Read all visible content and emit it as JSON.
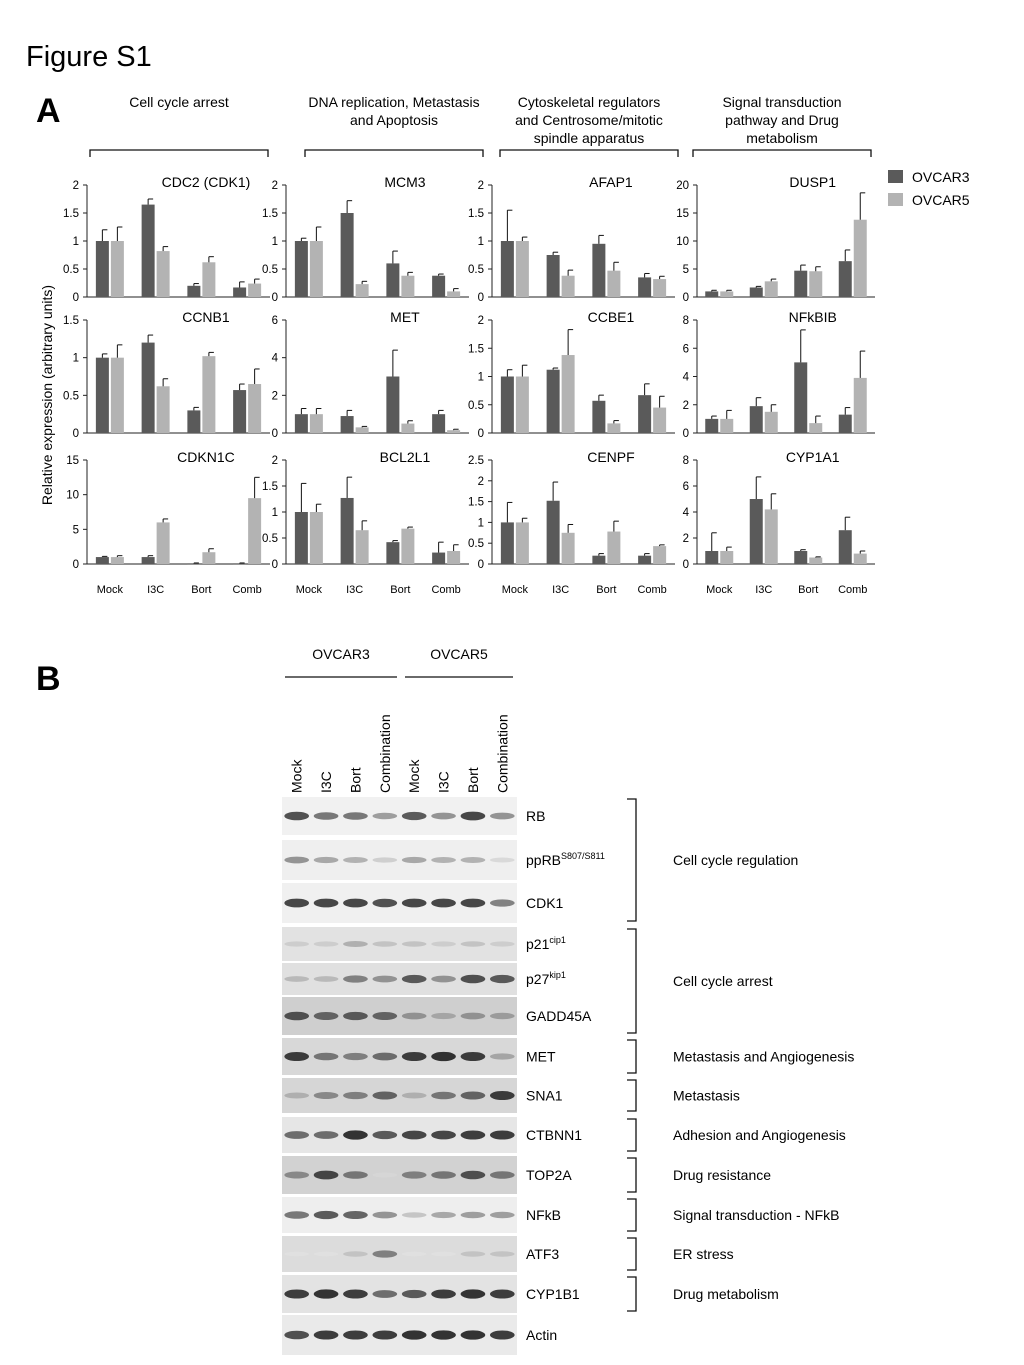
{
  "figure_title": "Figure S1",
  "panel_a_label": "A",
  "panel_b_label": "B",
  "y_axis_label": "Relative expression (arbitrary units)",
  "legend": [
    {
      "name": "OVCAR3",
      "color": "#5a5a5a"
    },
    {
      "name": "OVCAR5",
      "color": "#b3b3b3"
    }
  ],
  "groups": [
    [
      "Cell cycle arrest"
    ],
    [
      "DNA replication, Metastasis",
      "and Apoptosis"
    ],
    [
      "Cytoskeletal regulators",
      "and Centrosome/mitotic",
      "spindle apparatus"
    ],
    [
      "Signal transduction",
      "pathway and Drug",
      "metabolism"
    ]
  ],
  "categories": [
    "Mock",
    "I3C",
    "Bort",
    "Comb"
  ],
  "chart_data": [
    {
      "type": "bar",
      "title": "CDC2 (CDK1)",
      "ymax": 2,
      "ticks": [
        0,
        0.5,
        1,
        1.5,
        2
      ],
      "tick_labels": [
        "0",
        "0.5",
        "1",
        "1.5",
        "2"
      ],
      "series": [
        {
          "name": "OVCAR3",
          "values": [
            1.0,
            1.65,
            0.2,
            0.17
          ],
          "errors": [
            0.2,
            0.1,
            0.04,
            0.1
          ]
        },
        {
          "name": "OVCAR5",
          "values": [
            1.0,
            0.82,
            0.62,
            0.24
          ],
          "errors": [
            0.25,
            0.08,
            0.1,
            0.08
          ]
        }
      ]
    },
    {
      "type": "bar",
      "title": "MCM3",
      "ymax": 2,
      "ticks": [
        0,
        0.5,
        1,
        1.5,
        2
      ],
      "tick_labels": [
        "0",
        "0.5",
        "1",
        "1.5",
        "2"
      ],
      "series": [
        {
          "name": "OVCAR3",
          "values": [
            1.0,
            1.5,
            0.6,
            0.38
          ],
          "errors": [
            0.05,
            0.22,
            0.22,
            0.03
          ]
        },
        {
          "name": "OVCAR5",
          "values": [
            1.0,
            0.23,
            0.38,
            0.1
          ],
          "errors": [
            0.25,
            0.05,
            0.06,
            0.05
          ]
        }
      ]
    },
    {
      "type": "bar",
      "title": "AFAP1",
      "ymax": 2,
      "ticks": [
        0,
        0.5,
        1,
        1.5,
        2
      ],
      "tick_labels": [
        "0",
        "0.5",
        "1",
        "1.5",
        "2"
      ],
      "series": [
        {
          "name": "OVCAR3",
          "values": [
            1.0,
            0.75,
            0.95,
            0.35
          ],
          "errors": [
            0.55,
            0.05,
            0.15,
            0.07
          ]
        },
        {
          "name": "OVCAR5",
          "values": [
            1.0,
            0.38,
            0.47,
            0.32
          ],
          "errors": [
            0.07,
            0.1,
            0.15,
            0.05
          ]
        }
      ]
    },
    {
      "type": "bar",
      "title": "DUSP1",
      "ymax": 20,
      "ticks": [
        0,
        5,
        10,
        15,
        20
      ],
      "tick_labels": [
        "0",
        "5",
        "10",
        "15",
        "20"
      ],
      "series": [
        {
          "name": "OVCAR3",
          "values": [
            1.0,
            1.7,
            4.7,
            6.4
          ],
          "errors": [
            0.2,
            0.2,
            1.0,
            2.0
          ]
        },
        {
          "name": "OVCAR5",
          "values": [
            1.0,
            2.8,
            4.6,
            13.8
          ],
          "errors": [
            0.2,
            0.4,
            0.8,
            4.8
          ]
        }
      ]
    },
    {
      "type": "bar",
      "title": "CCNB1",
      "ymax": 1.5,
      "ticks": [
        0,
        0.5,
        1,
        1.5
      ],
      "tick_labels": [
        "0",
        "0.5",
        "1",
        "1.5"
      ],
      "series": [
        {
          "name": "OVCAR3",
          "values": [
            1.0,
            1.2,
            0.3,
            0.57
          ],
          "errors": [
            0.05,
            0.1,
            0.04,
            0.08
          ]
        },
        {
          "name": "OVCAR5",
          "values": [
            1.0,
            0.62,
            1.02,
            0.65
          ],
          "errors": [
            0.17,
            0.1,
            0.05,
            0.2
          ]
        }
      ]
    },
    {
      "type": "bar",
      "title": "MET",
      "ymax": 6,
      "ticks": [
        0,
        2,
        4,
        6
      ],
      "tick_labels": [
        "0",
        "2",
        "4",
        "6"
      ],
      "series": [
        {
          "name": "OVCAR3",
          "values": [
            1.0,
            0.9,
            3.0,
            1.0
          ],
          "errors": [
            0.3,
            0.3,
            1.4,
            0.2
          ]
        },
        {
          "name": "OVCAR5",
          "values": [
            1.0,
            0.3,
            0.5,
            0.15
          ],
          "errors": [
            0.3,
            0.05,
            0.15,
            0.05
          ]
        }
      ]
    },
    {
      "type": "bar",
      "title": "CCBE1",
      "ymax": 2,
      "ticks": [
        0,
        0.5,
        1,
        1.5,
        2
      ],
      "tick_labels": [
        "0",
        "0.5",
        "1",
        "1.5",
        "2"
      ],
      "series": [
        {
          "name": "OVCAR3",
          "values": [
            1.0,
            1.12,
            0.57,
            0.67
          ],
          "errors": [
            0.12,
            0.03,
            0.1,
            0.2
          ]
        },
        {
          "name": "OVCAR5",
          "values": [
            1.0,
            1.38,
            0.17,
            0.45
          ],
          "errors": [
            0.2,
            0.45,
            0.05,
            0.2
          ]
        }
      ]
    },
    {
      "type": "bar",
      "title": "NFkBIB",
      "ymax": 8,
      "ticks": [
        0,
        2,
        4,
        6,
        8
      ],
      "tick_labels": [
        "0",
        "2",
        "4",
        "6",
        "8"
      ],
      "series": [
        {
          "name": "OVCAR3",
          "values": [
            1.0,
            1.9,
            5.0,
            1.3
          ],
          "errors": [
            0.2,
            0.6,
            2.3,
            0.5
          ]
        },
        {
          "name": "OVCAR5",
          "values": [
            1.0,
            1.5,
            0.7,
            3.9
          ],
          "errors": [
            0.6,
            0.5,
            0.5,
            1.9
          ]
        }
      ]
    },
    {
      "type": "bar",
      "title": "CDKN1C",
      "ymax": 15,
      "ticks": [
        0,
        5,
        10,
        15
      ],
      "tick_labels": [
        "0",
        "5",
        "10",
        "15"
      ],
      "series": [
        {
          "name": "OVCAR3",
          "values": [
            1.0,
            1.0,
            0.1,
            0.1
          ],
          "errors": [
            0.1,
            0.2,
            0.05,
            0.05
          ]
        },
        {
          "name": "OVCAR5",
          "values": [
            1.0,
            6.0,
            1.7,
            9.5
          ],
          "errors": [
            0.2,
            0.5,
            0.5,
            3.0
          ]
        }
      ]
    },
    {
      "type": "bar",
      "title": "BCL2L1",
      "ymax": 2,
      "ticks": [
        0,
        0.5,
        1,
        1.5,
        2
      ],
      "tick_labels": [
        "0",
        "0.5",
        "1",
        "1.5",
        "2"
      ],
      "series": [
        {
          "name": "OVCAR3",
          "values": [
            1.0,
            1.27,
            0.42,
            0.22
          ],
          "errors": [
            0.55,
            0.4,
            0.03,
            0.2
          ]
        },
        {
          "name": "OVCAR5",
          "values": [
            1.0,
            0.65,
            0.68,
            0.25
          ],
          "errors": [
            0.15,
            0.18,
            0.03,
            0.12
          ]
        }
      ]
    },
    {
      "type": "bar",
      "title": "CENPF",
      "ymax": 2.5,
      "ticks": [
        0,
        0.5,
        1,
        1.5,
        2,
        2.5
      ],
      "tick_labels": [
        "0",
        "0.5",
        "1",
        "1.5",
        "2",
        "2.5"
      ],
      "series": [
        {
          "name": "OVCAR3",
          "values": [
            1.0,
            1.52,
            0.2,
            0.2
          ],
          "errors": [
            0.48,
            0.45,
            0.05,
            0.05
          ]
        },
        {
          "name": "OVCAR5",
          "values": [
            1.0,
            0.75,
            0.78,
            0.43
          ],
          "errors": [
            0.1,
            0.2,
            0.25,
            0.03
          ]
        }
      ]
    },
    {
      "type": "bar",
      "title": "CYP1A1",
      "ymax": 8,
      "ticks": [
        0,
        2,
        4,
        6,
        8
      ],
      "tick_labels": [
        "0",
        "2",
        "4",
        "6",
        "8"
      ],
      "series": [
        {
          "name": "OVCAR3",
          "values": [
            1.0,
            5.0,
            1.0,
            2.6
          ],
          "errors": [
            1.4,
            1.7,
            0.1,
            1.0
          ]
        },
        {
          "name": "OVCAR5",
          "values": [
            1.0,
            4.2,
            0.5,
            0.8
          ],
          "errors": [
            0.3,
            1.2,
            0.05,
            0.2
          ]
        }
      ]
    }
  ],
  "panel_b": {
    "cell_lines": [
      "OVCAR3",
      "OVCAR5"
    ],
    "lanes": [
      "Mock",
      "I3C",
      "Bort",
      "Combination",
      "Mock",
      "I3C",
      "Bort",
      "Combination"
    ],
    "blots": [
      {
        "name": "RB",
        "bg": "#f1f1f1",
        "intensity": [
          0.8,
          0.6,
          0.6,
          0.4,
          0.75,
          0.45,
          0.85,
          0.45
        ]
      },
      {
        "name": "ppRB",
        "sup": "S807/S811",
        "bg": "#efefef",
        "intensity": [
          0.45,
          0.35,
          0.3,
          0.15,
          0.35,
          0.3,
          0.3,
          0.1
        ]
      },
      {
        "name": "CDK1",
        "bg": "#f0f0f0",
        "intensity": [
          0.85,
          0.85,
          0.85,
          0.8,
          0.85,
          0.85,
          0.85,
          0.55
        ]
      },
      {
        "name": "p21",
        "sup": "cip1",
        "bg": "#e2e2e2",
        "intensity": [
          0.15,
          0.15,
          0.3,
          0.2,
          0.2,
          0.15,
          0.2,
          0.15
        ]
      },
      {
        "name": "p27",
        "sup": "kip1",
        "bg": "#e0e0e0",
        "intensity": [
          0.25,
          0.25,
          0.55,
          0.45,
          0.75,
          0.45,
          0.8,
          0.75
        ]
      },
      {
        "name": "GADD45A",
        "bg": "#cfcfcf",
        "intensity": [
          0.8,
          0.7,
          0.75,
          0.7,
          0.45,
          0.35,
          0.45,
          0.4
        ]
      },
      {
        "name": "MET",
        "bg": "#d8d8d8",
        "intensity": [
          0.9,
          0.6,
          0.55,
          0.65,
          0.9,
          0.95,
          0.9,
          0.35
        ]
      },
      {
        "name": "SNA1",
        "bg": "#d6d6d6",
        "intensity": [
          0.3,
          0.5,
          0.55,
          0.7,
          0.3,
          0.6,
          0.7,
          0.9
        ]
      },
      {
        "name": "CTBNN1",
        "bg": "#e6e6e6",
        "intensity": [
          0.65,
          0.65,
          0.95,
          0.75,
          0.85,
          0.85,
          0.9,
          0.9
        ]
      },
      {
        "name": "TOP2A",
        "bg": "#d2d2d2",
        "intensity": [
          0.5,
          0.85,
          0.6,
          0.1,
          0.55,
          0.6,
          0.8,
          0.6
        ]
      },
      {
        "name": "NFkB",
        "bg": "#eeeeee",
        "intensity": [
          0.6,
          0.75,
          0.7,
          0.45,
          0.2,
          0.35,
          0.4,
          0.4
        ]
      },
      {
        "name": "ATF3",
        "bg": "#dcdcdc",
        "intensity": [
          0.05,
          0.05,
          0.2,
          0.55,
          0.05,
          0.05,
          0.2,
          0.2
        ]
      },
      {
        "name": "CYP1B1",
        "bg": "#e3e3e3",
        "intensity": [
          0.9,
          0.95,
          0.9,
          0.65,
          0.75,
          0.9,
          0.95,
          0.9
        ]
      },
      {
        "name": "Actin",
        "bg": "#eaeaea",
        "intensity": [
          0.8,
          0.9,
          0.9,
          0.9,
          0.95,
          0.95,
          0.95,
          0.9
        ]
      }
    ],
    "functions": [
      {
        "label": "Cell cycle regulation",
        "rows": [
          0,
          2
        ]
      },
      {
        "label": "Cell cycle arrest",
        "rows": [
          3,
          5
        ]
      },
      {
        "label": "Metastasis and Angiogenesis",
        "rows": [
          6,
          6
        ]
      },
      {
        "label": "Metastasis",
        "rows": [
          7,
          7
        ]
      },
      {
        "label": "Adhesion and Angiogenesis",
        "rows": [
          8,
          8
        ]
      },
      {
        "label": "Drug resistance",
        "rows": [
          9,
          9
        ]
      },
      {
        "label": "Signal transduction - NFkB",
        "rows": [
          10,
          10
        ]
      },
      {
        "label": "ER stress",
        "rows": [
          11,
          11
        ]
      },
      {
        "label": "Drug metabolism",
        "rows": [
          12,
          12
        ]
      }
    ]
  }
}
